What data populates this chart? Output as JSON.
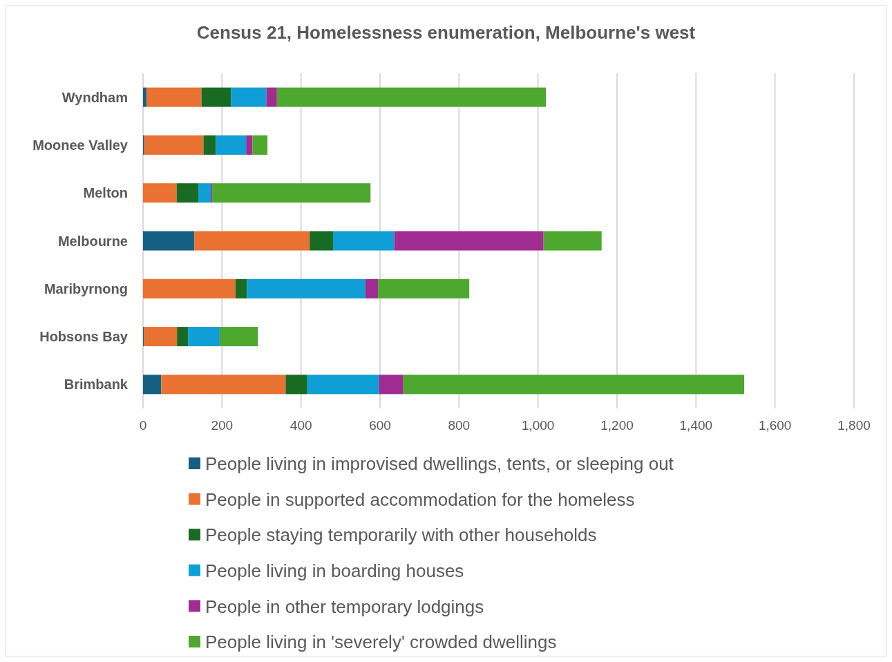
{
  "chart_data": {
    "type": "bar",
    "orientation": "horizontal",
    "stacked": true,
    "title": "Census 21, Homelessness enumeration, Melbourne's west",
    "categories": [
      "Wyndham",
      "Moonee Valley",
      "Melton",
      "Melbourne",
      "Maribyrnong",
      "Hobsons Bay",
      "Brimbank"
    ],
    "series": [
      {
        "name": "People living in improvised dwellings, tents, or sleeping out",
        "color": "#156082",
        "values": [
          9,
          3,
          0,
          130,
          0,
          2,
          46
        ]
      },
      {
        "name": "People in supported accommodation for the homeless",
        "color": "#e97132",
        "values": [
          139,
          150,
          85,
          292,
          234,
          84,
          315
        ]
      },
      {
        "name": "People staying temporarily with other households",
        "color": "#196b24",
        "values": [
          75,
          31,
          55,
          59,
          29,
          28,
          55
        ]
      },
      {
        "name": "People living in boarding houses",
        "color": "#0f9ed5",
        "values": [
          89,
          77,
          32,
          155,
          300,
          80,
          182
        ]
      },
      {
        "name": "People in other temporary lodgings",
        "color": "#a02b93",
        "values": [
          27,
          16,
          3,
          378,
          32,
          0,
          61
        ]
      },
      {
        "name": "People living in 'severely' crowded dwellings",
        "color": "#4ea72e",
        "values": [
          681,
          38,
          401,
          147,
          231,
          97,
          863
        ]
      }
    ],
    "xlim": [
      0,
      1800
    ],
    "xticks": [
      0,
      {
        "value": 200,
        "label": "200"
      },
      {
        "value": 400,
        "label": "400"
      },
      {
        "value": 600,
        "label": "600"
      },
      {
        "value": 800,
        "label": "800"
      },
      {
        "value": 1000,
        "label": "1,000"
      },
      {
        "value": 1200,
        "label": "1,200"
      },
      {
        "value": 1400,
        "label": "1,400"
      },
      {
        "value": 1600,
        "label": "1,600"
      },
      {
        "value": 1800,
        "label": "1,800"
      }
    ],
    "grid": "x",
    "legend": "bottom"
  }
}
